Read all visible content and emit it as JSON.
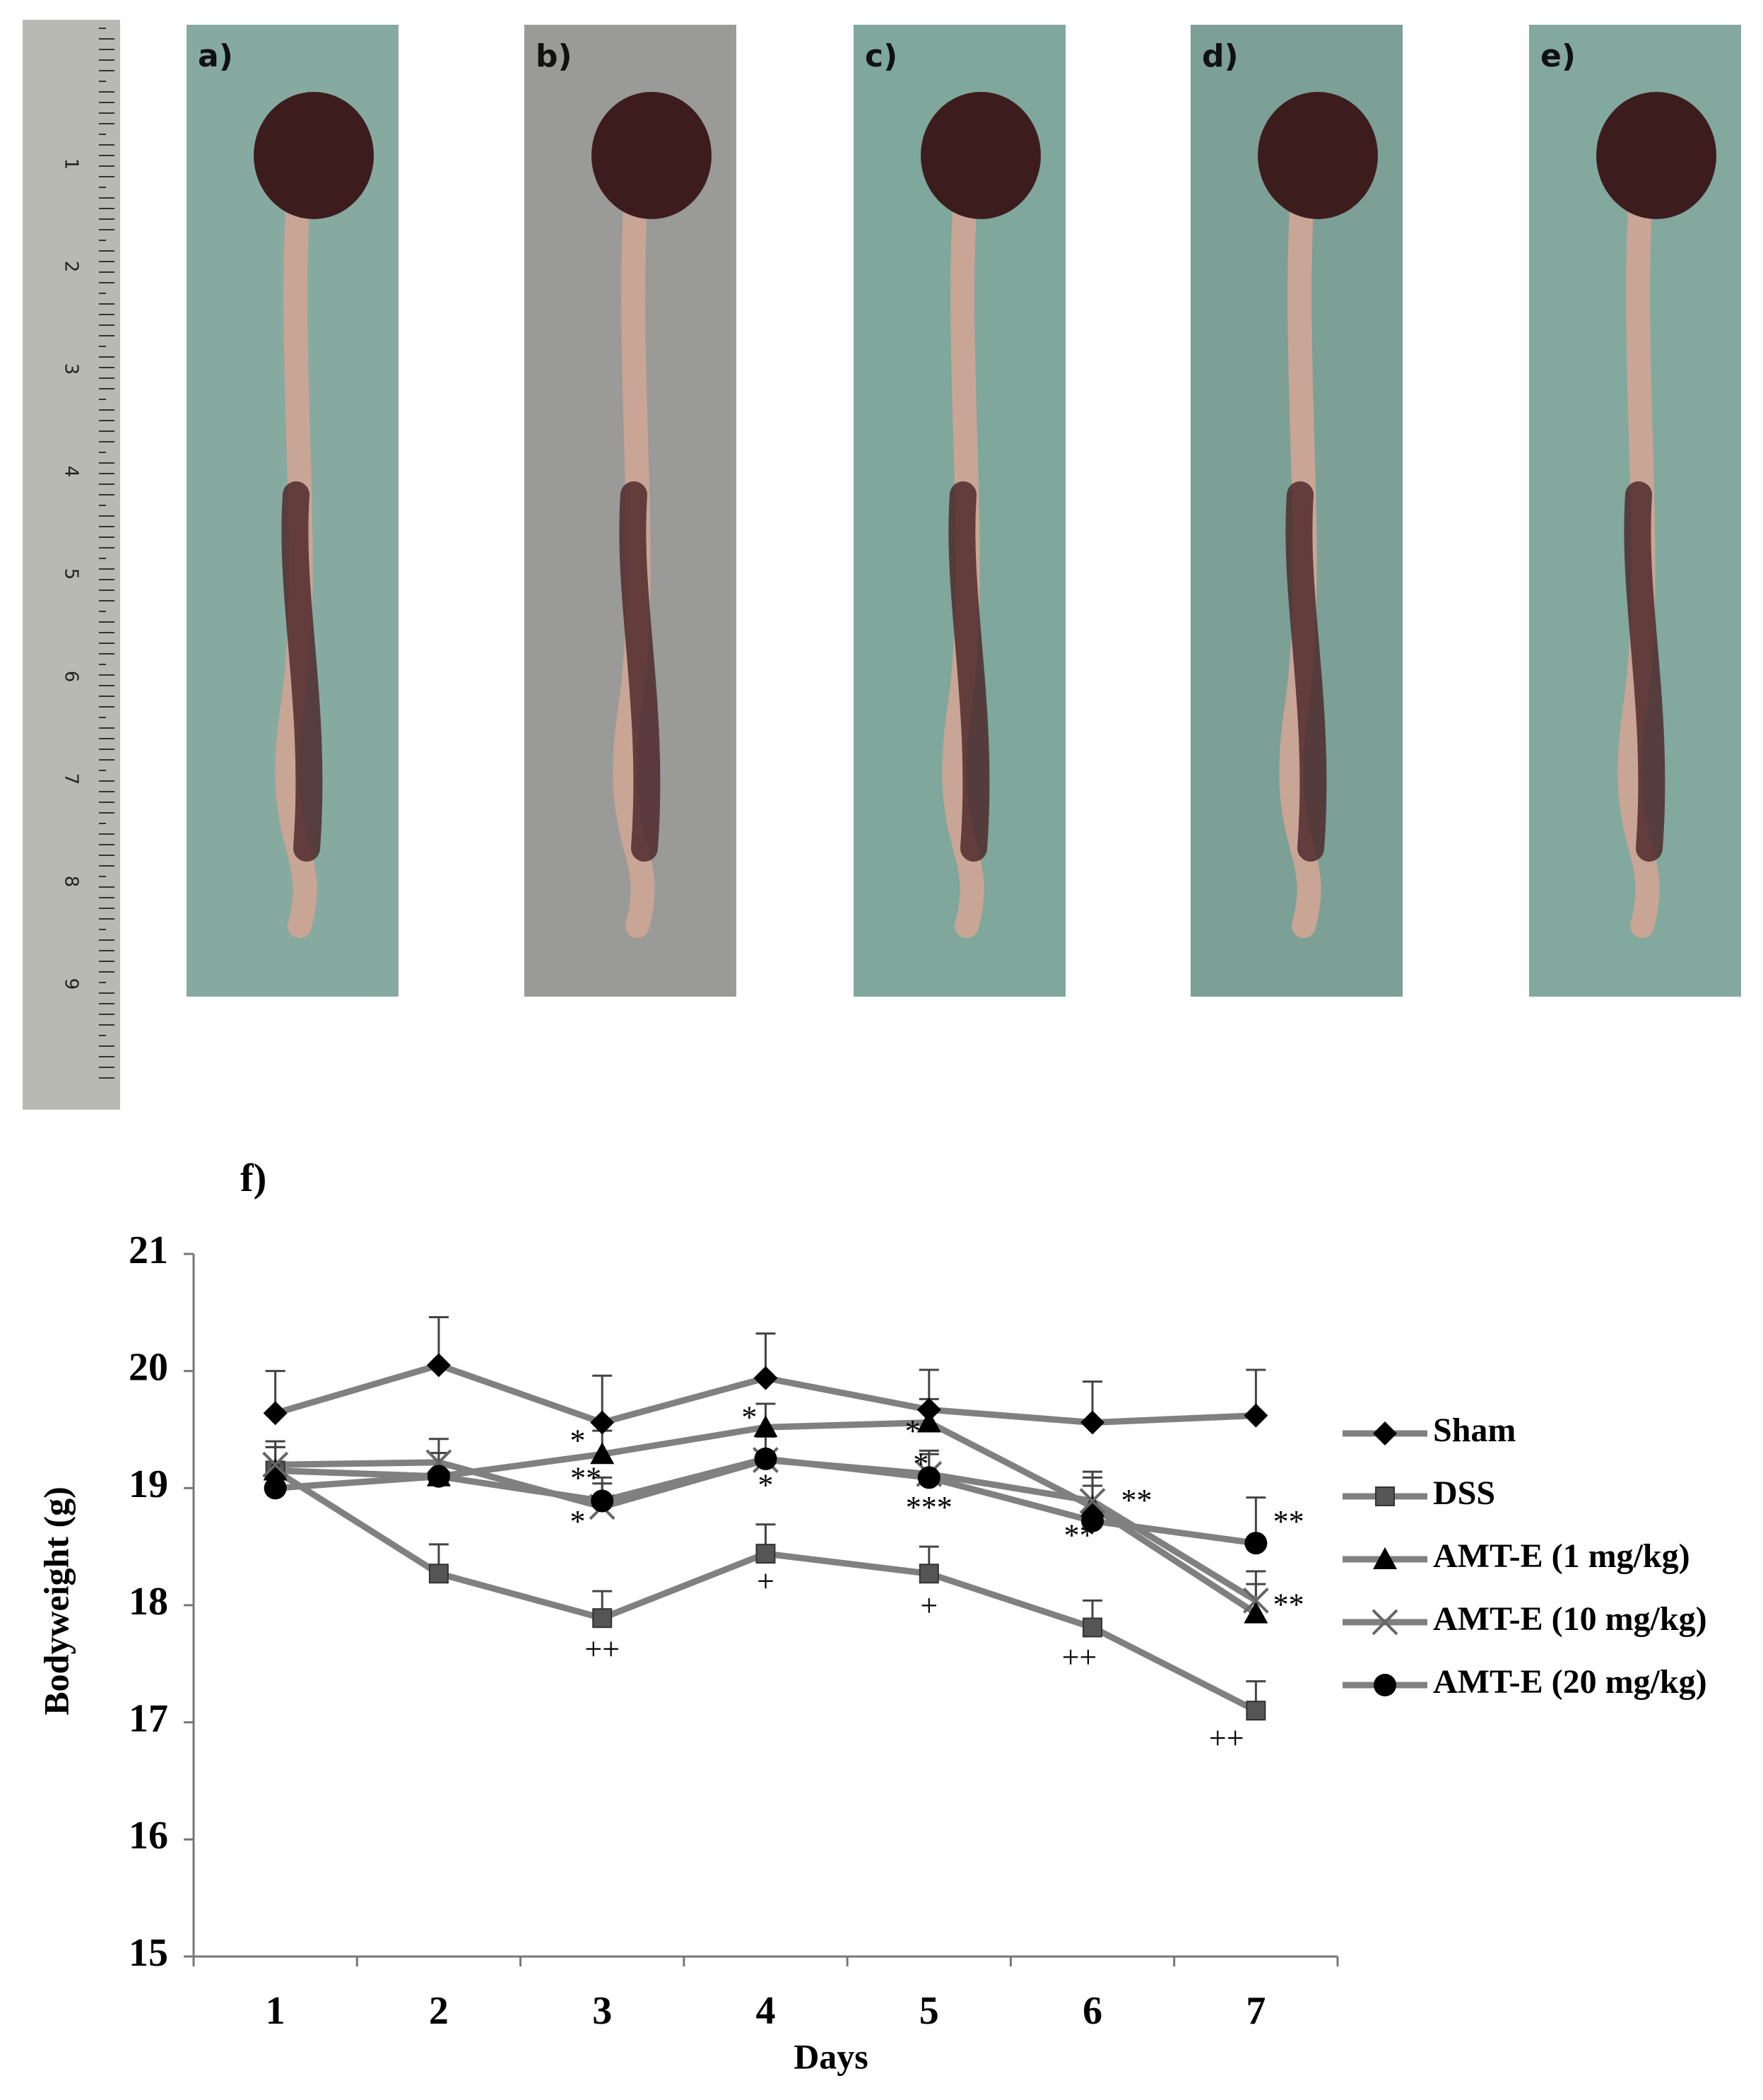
{
  "panels": [
    {
      "label": "a)"
    },
    {
      "label": "b)"
    },
    {
      "label": "c)"
    },
    {
      "label": "d)"
    },
    {
      "label": "e)"
    }
  ],
  "ruler_labels": [
    "1",
    "2",
    "3",
    "4",
    "5",
    "6",
    "7",
    "8",
    "9"
  ],
  "chart_data": {
    "type": "line",
    "label": "f)",
    "x_label": "Days",
    "y_label": "Bodyweight (g)",
    "categories": [
      "1",
      "2",
      "3",
      "4",
      "5",
      "6",
      "7"
    ],
    "ylim": [
      15,
      21
    ],
    "yticks": [
      15,
      16,
      17,
      18,
      19,
      20,
      21
    ],
    "line_color": "#808080",
    "marker_color": "#000000",
    "series": [
      {
        "name": "Sham",
        "marker": "diamond",
        "values": [
          19.64,
          20.05,
          19.56,
          19.94,
          19.67,
          19.56,
          19.62
        ],
        "errors": [
          0.36,
          0.41,
          0.4,
          0.38,
          0.34,
          0.35,
          0.39
        ]
      },
      {
        "name": "DSS",
        "marker": "square",
        "values": [
          19.15,
          18.27,
          17.89,
          18.44,
          18.27,
          17.81,
          17.1
        ],
        "errors": [
          0.2,
          0.25,
          0.23,
          0.25,
          0.23,
          0.23,
          0.25
        ]
      },
      {
        "name": "AMT-E (1 mg/kg)",
        "marker": "triangle",
        "values": [
          19.15,
          19.1,
          19.29,
          19.52,
          19.56,
          18.84,
          17.93
        ],
        "errors": [
          0.2,
          0.2,
          0.2,
          0.2,
          0.2,
          0.25,
          0.25
        ]
      },
      {
        "name": "AMT-E (10 mg/kg)",
        "marker": "x",
        "values": [
          19.2,
          19.22,
          18.84,
          19.24,
          19.12,
          18.89,
          18.04
        ],
        "errors": [
          0.2,
          0.2,
          0.2,
          0.2,
          0.2,
          0.25,
          0.25
        ]
      },
      {
        "name": "AMT-E (20 mg/kg)",
        "marker": "circle",
        "values": [
          19.0,
          19.1,
          18.89,
          19.25,
          19.09,
          18.72,
          18.53
        ],
        "errors": [
          0.2,
          0.2,
          0.2,
          0.2,
          0.2,
          0.3,
          0.39
        ]
      }
    ],
    "annotations": [
      {
        "text": "*",
        "x": 2.85,
        "y": 19.38
      },
      {
        "text": "**",
        "x": 2.9,
        "y": 19.06
      },
      {
        "text": "*",
        "x": 2.85,
        "y": 18.69
      },
      {
        "text": "++",
        "x": 3,
        "y": 17.6
      },
      {
        "text": "*",
        "x": 3.9,
        "y": 19.58
      },
      {
        "text": "*",
        "x": 4,
        "y": 19.0
      },
      {
        "text": "+",
        "x": 4,
        "y": 18.18
      },
      {
        "text": "*",
        "x": 4.9,
        "y": 19.46
      },
      {
        "text": "*",
        "x": 4.95,
        "y": 19.18
      },
      {
        "text": "***",
        "x": 5,
        "y": 18.81
      },
      {
        "text": "+",
        "x": 5,
        "y": 17.97
      },
      {
        "text": "**",
        "x": 5.92,
        "y": 18.57
      },
      {
        "text": "**",
        "x": 6.27,
        "y": 18.87
      },
      {
        "text": "++",
        "x": 5.92,
        "y": 17.53
      },
      {
        "text": "**",
        "x": 7.2,
        "y": 18.69
      },
      {
        "text": "**",
        "x": 7.2,
        "y": 17.98
      },
      {
        "text": "++",
        "x": 6.82,
        "y": 16.84
      }
    ]
  }
}
